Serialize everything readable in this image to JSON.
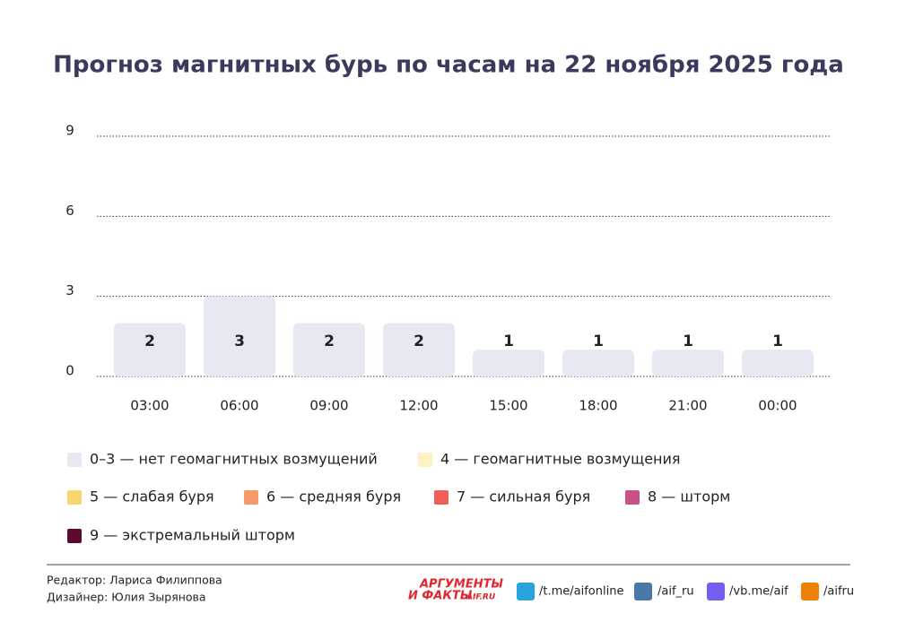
{
  "chart_data": {
    "type": "bar",
    "title": "Прогноз магнитных бурь по часам на 22 ноября 2025 года",
    "categories": [
      "03:00",
      "06:00",
      "09:00",
      "12:00",
      "15:00",
      "18:00",
      "21:00",
      "00:00"
    ],
    "values": [
      2,
      3,
      2,
      2,
      1,
      1,
      1,
      1
    ],
    "color": "#e6e8f2",
    "ylim": [
      0,
      9
    ],
    "yticks": [
      0,
      3,
      6,
      9
    ],
    "grid": true,
    "legend": [
      {
        "label": "0–3 — нет геомагнитных возмущений",
        "color": "#e6e8f2"
      },
      {
        "label": "4 — геомагнитные возмущения",
        "color": "#fdf0c4"
      },
      {
        "label": "5 — слабая буря",
        "color": "#f7d56e"
      },
      {
        "label": "6 — средняя буря",
        "color": "#f59a6b"
      },
      {
        "label": "7 — сильная буря",
        "color": "#ef5f55"
      },
      {
        "label": "8 — шторм",
        "color": "#c9508a"
      },
      {
        "label": "9 — экстремальный шторм",
        "color": "#5c0a2e"
      }
    ]
  },
  "footer": {
    "editor": "Редактор: Лариса Филиппова",
    "designer": "Дизайнер: Юлия Зырянова",
    "logo": [
      "АРГУМЕНТЫ",
      "И ФАКТЫ",
      "AIF.RU"
    ],
    "links": [
      "/t.me/aifonline",
      "/aif_ru",
      "/vb.me/aif",
      "/aifru"
    ]
  }
}
